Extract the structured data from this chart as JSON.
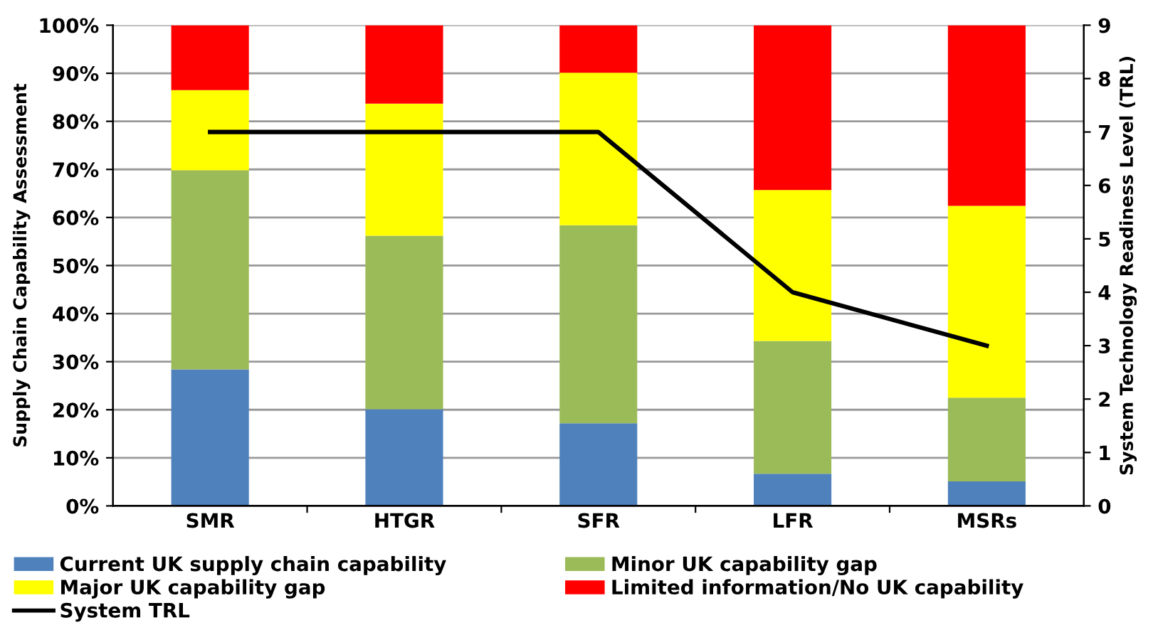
{
  "chart_data": {
    "type": "bar",
    "stacked": true,
    "categories": [
      "SMR",
      "HTGR",
      "SFR",
      "LFR",
      "MSRs"
    ],
    "ylabel": "Supply Chain Capability Assessment",
    "y2label": "System Technology Readiness Level (TRL)",
    "series": [
      {
        "name": "Current UK supply chain capability",
        "color": "#4f81bd",
        "values": [
          28.4,
          20.1,
          17.2,
          6.7,
          5.1
        ]
      },
      {
        "name": "Minor UK capability gap",
        "color": "#9bbb59",
        "values": [
          41.4,
          36.1,
          41.2,
          27.6,
          17.4
        ]
      },
      {
        "name": "Major UK capability gap",
        "color": "#ffff00",
        "values": [
          16.7,
          27.5,
          31.7,
          31.4,
          39.9
        ]
      },
      {
        "name": "Limited information/No UK capability",
        "color": "#ff0000",
        "values": [
          13.5,
          16.3,
          9.9,
          34.3,
          37.6
        ]
      },
      {
        "name": "System TRL",
        "type": "line",
        "axis": "y2",
        "color": "#000000",
        "values": [
          7,
          7,
          7,
          4,
          3
        ]
      }
    ],
    "ylim": [
      0,
      100
    ],
    "yticks": [
      {
        "value": 0,
        "label": "0%"
      },
      {
        "value": 10,
        "label": "10%"
      },
      {
        "value": 20,
        "label": "20%"
      },
      {
        "value": 30,
        "label": "30%"
      },
      {
        "value": 40,
        "label": "40%"
      },
      {
        "value": 50,
        "label": "50%"
      },
      {
        "value": 60,
        "label": "60%"
      },
      {
        "value": 70,
        "label": "70%"
      },
      {
        "value": 80,
        "label": "80%"
      },
      {
        "value": 90,
        "label": "90%"
      },
      {
        "value": 100,
        "label": "100%"
      }
    ],
    "y2lim": [
      0,
      9
    ],
    "y2ticks": [
      0,
      1,
      2,
      3,
      4,
      5,
      6,
      7,
      8,
      9
    ],
    "grid": "y",
    "legend": "bottom",
    "marker": "none",
    "line_style": "solid"
  }
}
